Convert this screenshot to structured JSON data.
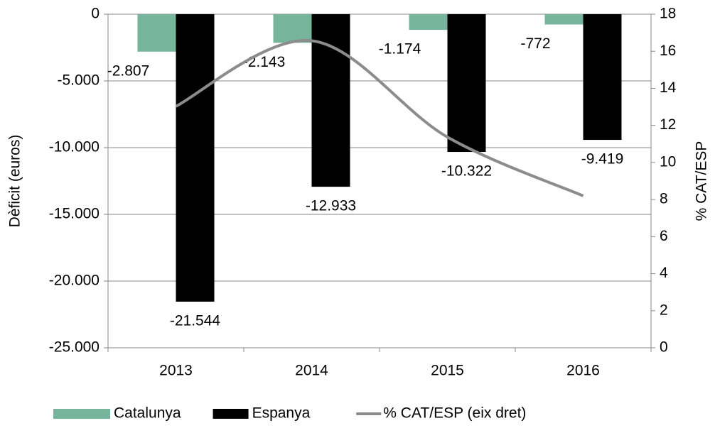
{
  "chart_data": {
    "type": "bar",
    "categories": [
      "2013",
      "2014",
      "2015",
      "2016"
    ],
    "series": [
      {
        "name": "Catalunya",
        "color": "#76b59b",
        "values": [
          -2807,
          -2143,
          -1174,
          -772
        ],
        "value_labels": [
          "-2.807",
          "-2.143",
          "-1.174",
          "-772"
        ]
      },
      {
        "name": "Espanya",
        "color": "#000000",
        "values": [
          -21544,
          -12933,
          -10322,
          -9419
        ],
        "value_labels": [
          "-21.544",
          "-12.933",
          "-10.322",
          "-9.419"
        ]
      },
      {
        "name": "% CAT/ESP (eix dret)",
        "type": "line",
        "axis": "y2",
        "color": "#8c8c8c",
        "values": [
          13.03,
          16.57,
          11.37,
          8.2
        ]
      }
    ],
    "ylabel": "Dèficit (euros)",
    "y2label": "% CAT/ESP",
    "ylim": [
      -25000,
      0
    ],
    "yticks": [
      {
        "value": -25000,
        "label": "-25.000"
      },
      {
        "value": -20000,
        "label": "-20.000"
      },
      {
        "value": -15000,
        "label": "-15.000"
      },
      {
        "value": -10000,
        "label": "-10.000"
      },
      {
        "value": -5000,
        "label": "-5.000"
      },
      0
    ],
    "y2lim": [
      0,
      18
    ],
    "y2ticks": [
      0,
      2,
      4,
      6,
      8,
      10,
      12,
      14,
      16,
      18
    ],
    "grid": true,
    "legend": "bottom"
  }
}
